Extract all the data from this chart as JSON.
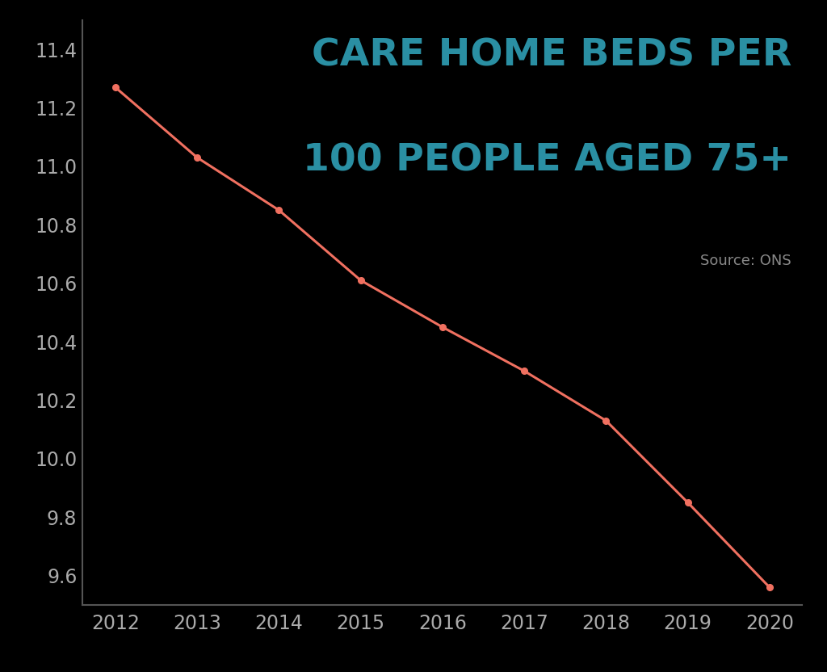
{
  "years": [
    2012,
    2013,
    2014,
    2015,
    2016,
    2017,
    2018,
    2019,
    2020
  ],
  "values": [
    11.27,
    11.03,
    10.85,
    10.61,
    10.45,
    10.3,
    10.13,
    9.85,
    9.56
  ],
  "line_color": "#F07060",
  "marker_color": "#F07060",
  "title_line1": "CARE HOME BEDS PER",
  "title_line2": "100 PEOPLE AGED 75+",
  "title_color": "#2A8FA3",
  "source_text": "Source: ONS",
  "source_color": "#888888",
  "background_color": "#000000",
  "plot_bg_color": "#000000",
  "axis_color": "#555555",
  "tick_color": "#aaaaaa",
  "ylim": [
    9.5,
    11.5
  ],
  "yticks": [
    9.6,
    9.8,
    10.0,
    10.2,
    10.4,
    10.6,
    10.8,
    11.0,
    11.2,
    11.4
  ],
  "xlim_left": 2011.6,
  "xlim_right": 2020.4,
  "tick_fontsize": 17,
  "title_fontsize": 34,
  "source_fontsize": 13
}
